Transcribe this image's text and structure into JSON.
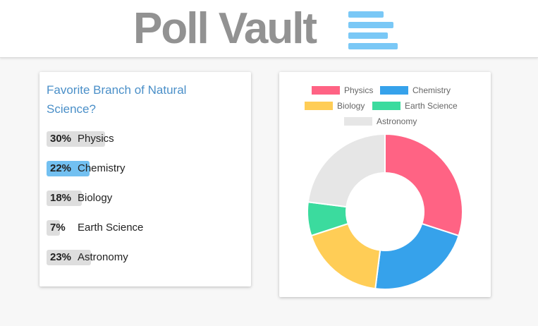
{
  "header": {
    "title": "Poll Vault",
    "logo_icon": "menu-lines-icon",
    "logo_color": "#7ac8f6"
  },
  "poll": {
    "question": "Favorite Branch of Natural Science?",
    "options": [
      {
        "percent_label": "30%",
        "label": "Physics",
        "value": 30,
        "highlighted": false
      },
      {
        "percent_label": "22%",
        "label": "Chemistry",
        "value": 22,
        "highlighted": true
      },
      {
        "percent_label": "18%",
        "label": "Biology",
        "value": 18,
        "highlighted": false
      },
      {
        "percent_label": "7%",
        "label": "Earth Science",
        "value": 7,
        "highlighted": false
      },
      {
        "percent_label": "23%",
        "label": "Astronomy",
        "value": 23,
        "highlighted": false
      }
    ]
  },
  "chart_data": {
    "type": "pie",
    "variant": "doughnut",
    "categories": [
      "Physics",
      "Chemistry",
      "Biology",
      "Earth Science",
      "Astronomy"
    ],
    "values": [
      30,
      22,
      18,
      7,
      23
    ],
    "colors": [
      "#ff6384",
      "#36a2eb",
      "#ffcd56",
      "#3bdb9e",
      "#e6e6e6"
    ],
    "legend_position": "top",
    "title": ""
  }
}
